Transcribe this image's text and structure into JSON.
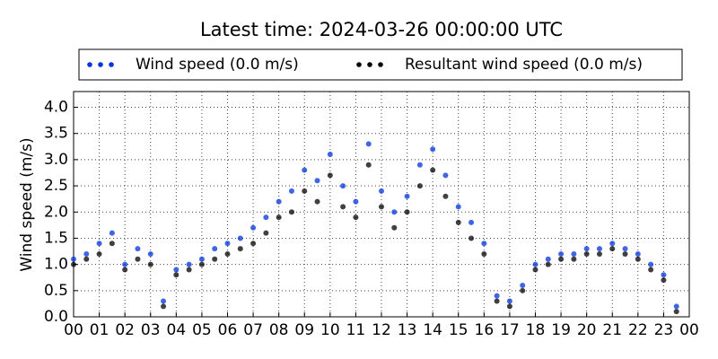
{
  "chart_data": {
    "type": "scatter",
    "title": "Latest time: 2024-03-26 00:00:00 UTC",
    "y_label": "Wind speed (m/s)",
    "x": [
      0,
      0.5,
      1,
      1.5,
      2,
      2.5,
      3,
      3.5,
      4,
      4.5,
      5,
      5.5,
      6,
      6.5,
      7,
      7.5,
      8,
      8.5,
      9,
      9.5,
      10,
      10.5,
      11,
      11.5,
      12,
      12.5,
      13,
      13.5,
      14,
      14.5,
      15,
      15.5,
      16,
      16.5,
      17,
      17.5,
      18,
      18.5,
      19,
      19.5,
      20,
      20.5,
      21,
      21.5,
      22,
      22.5,
      23,
      23.5
    ],
    "series": [
      {
        "name": "Wind speed (0.0 m/s)",
        "color": "#0033dd",
        "values": [
          1.1,
          1.2,
          1.4,
          1.6,
          1.0,
          1.3,
          1.2,
          0.3,
          0.9,
          1.0,
          1.1,
          1.3,
          1.4,
          1.5,
          1.7,
          1.9,
          2.2,
          2.4,
          2.8,
          2.6,
          3.1,
          2.5,
          2.2,
          3.3,
          2.4,
          2.0,
          2.3,
          2.9,
          3.2,
          2.7,
          2.1,
          1.8,
          1.4,
          0.4,
          0.3,
          0.6,
          1.0,
          1.1,
          1.2,
          1.2,
          1.3,
          1.3,
          1.4,
          1.3,
          1.2,
          1.0,
          0.8,
          0.2
        ]
      },
      {
        "name": "Resultant wind speed (0.0 m/s)",
        "color": "#000000",
        "values": [
          1.0,
          1.1,
          1.2,
          1.4,
          0.9,
          1.1,
          1.0,
          0.2,
          0.8,
          0.9,
          1.0,
          1.1,
          1.2,
          1.3,
          1.4,
          1.6,
          1.9,
          2.0,
          2.4,
          2.2,
          2.7,
          2.1,
          1.9,
          2.9,
          2.1,
          1.7,
          2.0,
          2.5,
          2.8,
          2.3,
          1.8,
          1.5,
          1.2,
          0.3,
          0.2,
          0.5,
          0.9,
          1.0,
          1.1,
          1.1,
          1.2,
          1.2,
          1.3,
          1.2,
          1.1,
          0.9,
          0.7,
          0.1
        ]
      }
    ],
    "xlim": [
      0,
      24
    ],
    "xticks": [
      {
        "value": 0,
        "label": "00"
      },
      {
        "value": 1,
        "label": "01"
      },
      {
        "value": 2,
        "label": "02"
      },
      {
        "value": 3,
        "label": "03"
      },
      {
        "value": 4,
        "label": "04"
      },
      {
        "value": 5,
        "label": "05"
      },
      {
        "value": 6,
        "label": "06"
      },
      {
        "value": 7,
        "label": "07"
      },
      {
        "value": 8,
        "label": "08"
      },
      {
        "value": 9,
        "label": "09"
      },
      {
        "value": 10,
        "label": "10"
      },
      {
        "value": 11,
        "label": "11"
      },
      {
        "value": 12,
        "label": "12"
      },
      {
        "value": 13,
        "label": "13"
      },
      {
        "value": 14,
        "label": "14"
      },
      {
        "value": 15,
        "label": "15"
      },
      {
        "value": 16,
        "label": "16"
      },
      {
        "value": 17,
        "label": "17"
      },
      {
        "value": 18,
        "label": "18"
      },
      {
        "value": 19,
        "label": "19"
      },
      {
        "value": 20,
        "label": "20"
      },
      {
        "value": 21,
        "label": "21"
      },
      {
        "value": 22,
        "label": "22"
      },
      {
        "value": 23,
        "label": "23"
      },
      {
        "value": 24,
        "label": "00"
      }
    ],
    "ylim": [
      0,
      4.3
    ],
    "yticks": [
      {
        "value": 0,
        "label": "0.0"
      },
      {
        "value": 0.5,
        "label": "0.5"
      },
      {
        "value": 1,
        "label": "1.0"
      },
      {
        "value": 1.5,
        "label": "1.5"
      },
      {
        "value": 2,
        "label": "2.0"
      },
      {
        "value": 2.5,
        "label": "2.5"
      },
      {
        "value": 3,
        "label": "3.0"
      },
      {
        "value": 3.5,
        "label": "3.5"
      },
      {
        "value": 4,
        "label": "4.0"
      }
    ],
    "grid": true
  }
}
